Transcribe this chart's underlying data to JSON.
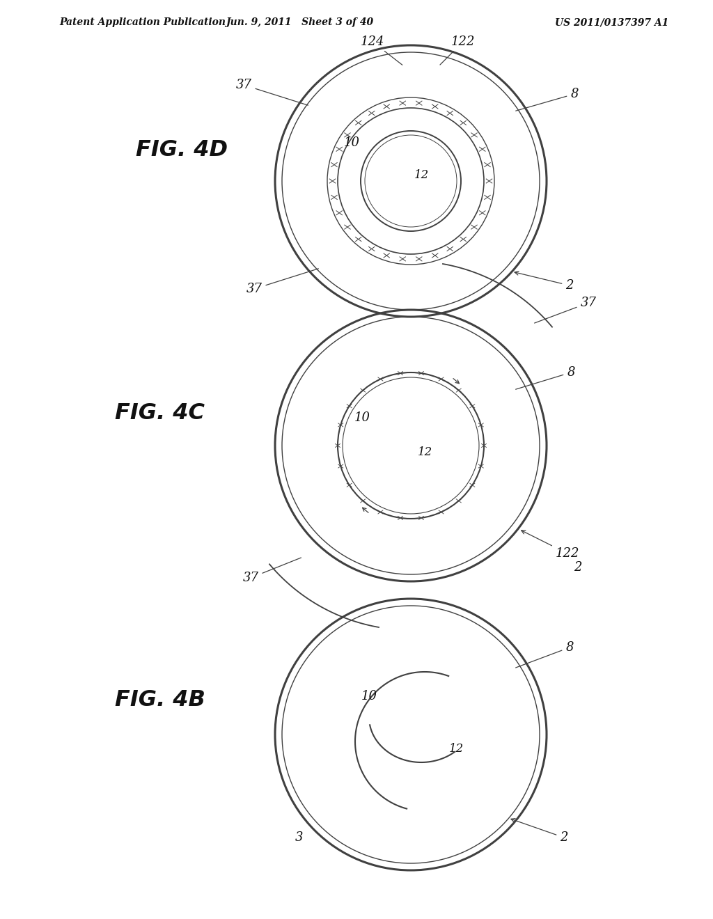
{
  "bg_color": "#ffffff",
  "line_color": "#404040",
  "text_color": "#111111",
  "header_left": "Patent Application Publication",
  "header_mid": "Jun. 9, 2011   Sheet 3 of 40",
  "header_right": "US 2011/0137397 A1",
  "fig4b_label": "FIG. 4B",
  "fig4c_label": "FIG. 4C",
  "fig4d_label": "FIG. 4D"
}
